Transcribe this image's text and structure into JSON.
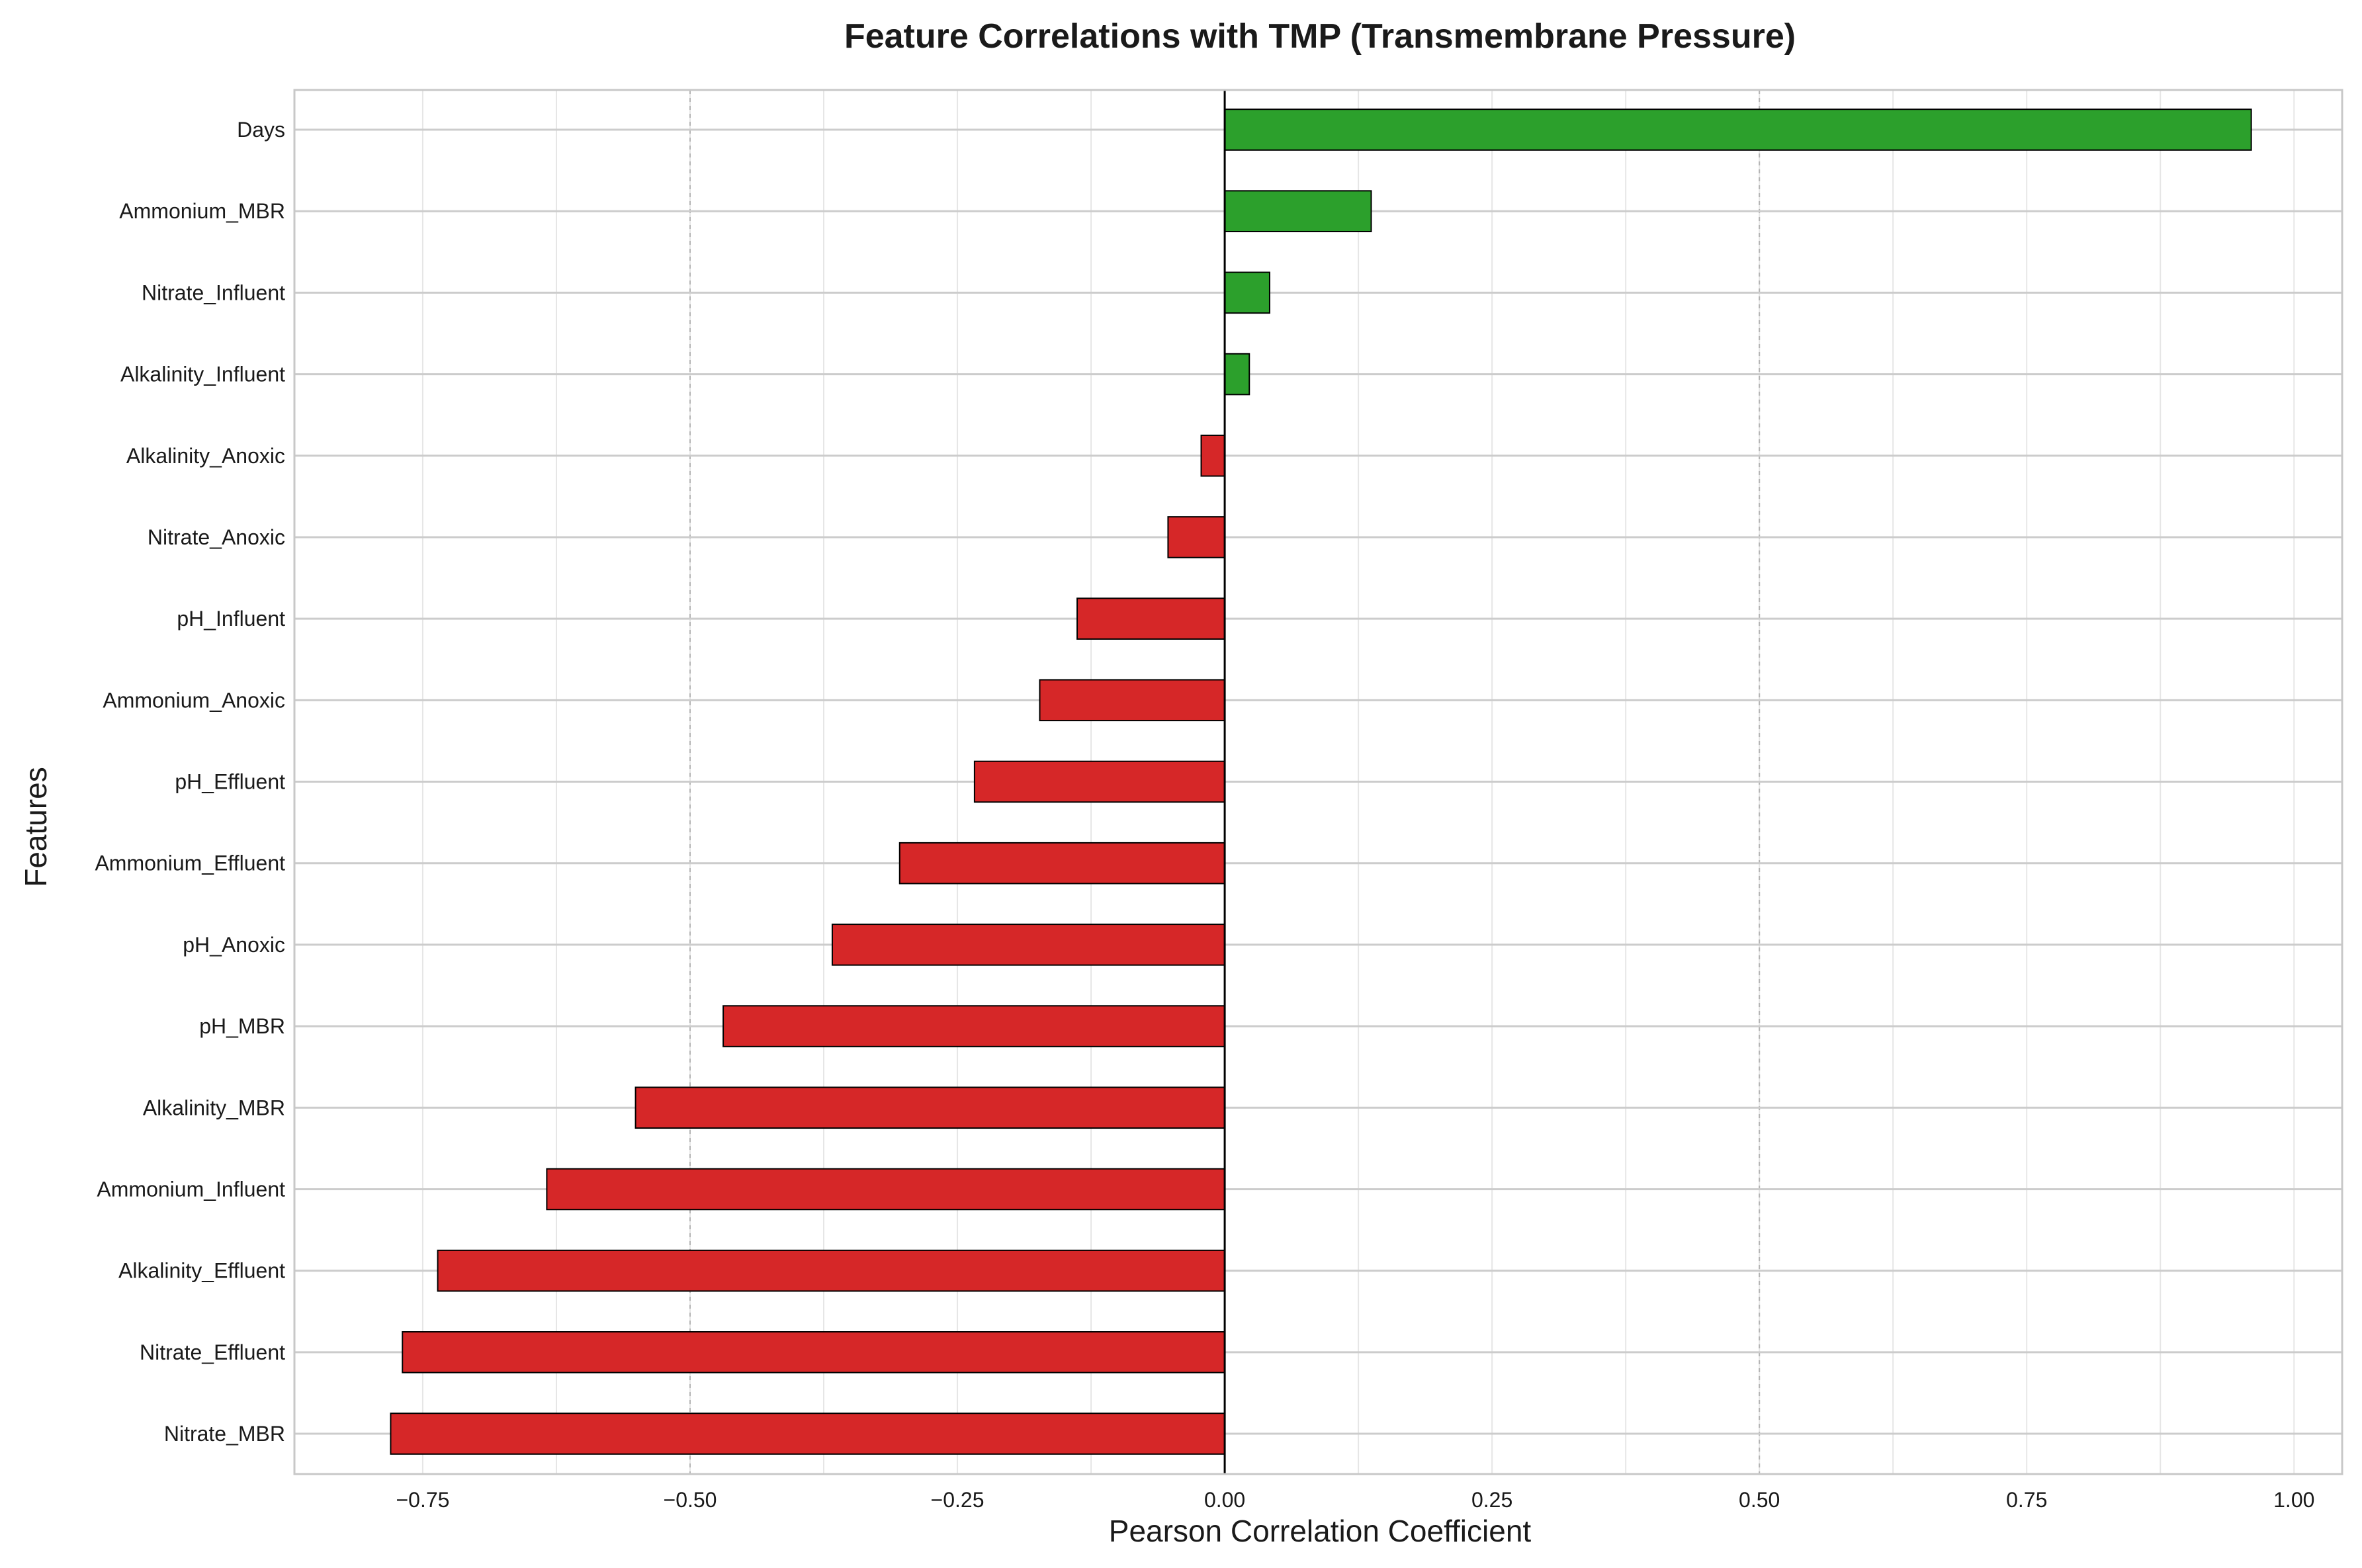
{
  "chart_data": {
    "type": "bar",
    "orientation": "horizontal",
    "title": "Feature Correlations with TMP (Transmembrane Pressure)",
    "xlabel": "Pearson Correlation Coefficient",
    "ylabel": "Features",
    "xlim": [
      -0.87,
      1.045
    ],
    "xticks": [
      -0.75,
      -0.5,
      -0.25,
      0.0,
      0.25,
      0.5,
      0.75,
      1.0
    ],
    "xtick_labels": [
      "−0.75",
      "−0.50",
      "−0.25",
      "0.00",
      "0.25",
      "0.50",
      "0.75",
      "1.00"
    ],
    "grid": true,
    "legend": "none",
    "colors": {
      "positive": "#2ca02c",
      "negative": "#d62728",
      "edge": "#000000",
      "grid": "#cccccc",
      "frame": "#c8c8c8"
    },
    "categories": [
      "Days",
      "Ammonium_MBR",
      "Nitrate_Influent",
      "Alkalinity_Influent",
      "Alkalinity_Anoxic",
      "Nitrate_Anoxic",
      "pH_Influent",
      "Ammonium_Anoxic",
      "pH_Effluent",
      "Ammonium_Effluent",
      "pH_Anoxic",
      "pH_MBR",
      "Alkalinity_MBR",
      "Ammonium_Influent",
      "Alkalinity_Effluent",
      "Nitrate_Effluent",
      "Nitrate_MBR"
    ],
    "values": [
      0.96,
      0.137,
      0.042,
      0.023,
      -0.022,
      -0.053,
      -0.138,
      -0.173,
      -0.234,
      -0.304,
      -0.367,
      -0.469,
      -0.551,
      -0.634,
      -0.736,
      -0.769,
      -0.78
    ]
  }
}
